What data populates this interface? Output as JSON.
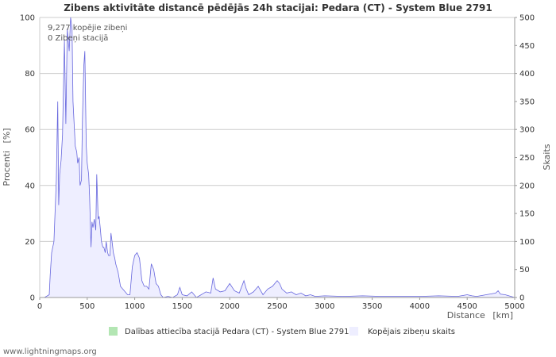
{
  "chart_data": {
    "type": "area",
    "title": "Zibens aktivitāte distancē pēdējās 24h stacijai: Pedara (CT) - System Blue 2791",
    "xlabel": "Distance",
    "xunit": "[km]",
    "ylabel_left": "Procenti",
    "ylabel_left_unit": "[%]",
    "ylabel_right": "Skaits",
    "xlim": [
      0,
      5000
    ],
    "ylim_left": [
      0,
      100
    ],
    "ylim_right": [
      0,
      500
    ],
    "x_ticks": [
      "0",
      "500",
      "1000",
      "1500",
      "2000",
      "2500",
      "3000",
      "3500",
      "4000",
      "4500",
      "5000"
    ],
    "y_left_ticks": [
      "0",
      "20",
      "40",
      "60",
      "80",
      "100"
    ],
    "y_right_ticks": [
      "0",
      "50",
      "100",
      "150",
      "200",
      "250",
      "300",
      "350",
      "400",
      "450",
      "500"
    ],
    "annotations": [
      "9,277 kopējie zibeņi",
      "0 Zibeņi stacijā"
    ],
    "legend": [
      {
        "label": "Dalības attiecība stacijā Pedara (CT) - System Blue 2791",
        "color": "#b3e6b3"
      },
      {
        "label": "Kopējais zibeņu skaits",
        "color": "#eeeeff"
      }
    ],
    "series": [
      {
        "name": "Dalības attiecība stacijā Pedara (CT) - System Blue 2791",
        "axis": "left",
        "values": []
      },
      {
        "name": "Kopējais zibeņu skaits",
        "axis": "right",
        "line_color": "#6666dd",
        "fill_color": "#eeeeff",
        "x": [
          0,
          50,
          100,
          110,
          125,
          150,
          175,
          190,
          200,
          210,
          225,
          240,
          260,
          275,
          290,
          300,
          310,
          325,
          340,
          350,
          365,
          375,
          390,
          400,
          415,
          425,
          440,
          450,
          465,
          475,
          490,
          500,
          515,
          525,
          540,
          550,
          560,
          575,
          590,
          600,
          615,
          625,
          640,
          650,
          665,
          675,
          690,
          700,
          715,
          725,
          740,
          750,
          765,
          775,
          790,
          800,
          825,
          850,
          875,
          900,
          925,
          950,
          975,
          1000,
          1025,
          1050,
          1075,
          1100,
          1125,
          1150,
          1175,
          1200,
          1225,
          1250,
          1275,
          1300,
          1350,
          1400,
          1450,
          1475,
          1500,
          1550,
          1600,
          1650,
          1700,
          1750,
          1800,
          1825,
          1850,
          1900,
          1950,
          2000,
          2050,
          2100,
          2150,
          2175,
          2200,
          2250,
          2300,
          2350,
          2400,
          2450,
          2500,
          2525,
          2550,
          2600,
          2650,
          2700,
          2750,
          2800,
          2850,
          2900,
          3000,
          3200,
          3400,
          3600,
          3800,
          4000,
          4200,
          4400,
          4500,
          4550,
          4600,
          4700,
          4800,
          4825,
          4850,
          4900,
          5000
        ],
        "values": [
          0,
          0,
          5,
          40,
          80,
          100,
          210,
          350,
          165,
          220,
          245,
          290,
          460,
          310,
          480,
          460,
          440,
          500,
          480,
          350,
          300,
          270,
          260,
          240,
          250,
          200,
          210,
          320,
          415,
          440,
          270,
          240,
          220,
          180,
          90,
          135,
          125,
          140,
          120,
          220,
          140,
          145,
          120,
          100,
          90,
          90,
          80,
          100,
          80,
          75,
          75,
          115,
          95,
          80,
          70,
          60,
          45,
          20,
          15,
          10,
          5,
          5,
          55,
          75,
          80,
          70,
          30,
          20,
          20,
          15,
          60,
          50,
          25,
          20,
          5,
          0,
          2,
          0,
          5,
          18,
          5,
          3,
          10,
          0,
          5,
          10,
          8,
          35,
          15,
          10,
          12,
          25,
          12,
          8,
          30,
          15,
          5,
          10,
          20,
          5,
          15,
          20,
          30,
          25,
          15,
          8,
          10,
          5,
          8,
          3,
          5,
          2,
          3,
          2,
          3,
          2,
          2,
          2,
          3,
          2,
          5,
          3,
          2,
          5,
          8,
          12,
          6,
          5,
          0
        ]
      }
    ],
    "grid": true,
    "legend_position": "bottom"
  },
  "footer": "www.lightningmaps.org"
}
